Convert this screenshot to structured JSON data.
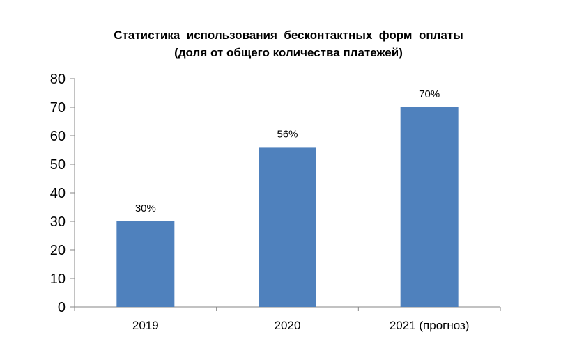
{
  "chart_data": {
    "type": "bar",
    "title_lines": [
      "Статистика  использования  бесконтактных  форм  оплаты",
      "(доля от общего количества платежей)"
    ],
    "categories": [
      "2019",
      "2020",
      "2021 (прогноз)"
    ],
    "values": [
      30,
      56,
      70
    ],
    "data_labels": [
      "30%",
      "56%",
      "70%"
    ],
    "ylim": [
      0,
      80
    ],
    "yticks": [
      "0",
      "10",
      "20",
      "30",
      "40",
      "50",
      "60",
      "70",
      "80"
    ],
    "xlabel": "",
    "ylabel": "",
    "grid": false,
    "legend": "none",
    "bar_color": "#4f81bd"
  }
}
